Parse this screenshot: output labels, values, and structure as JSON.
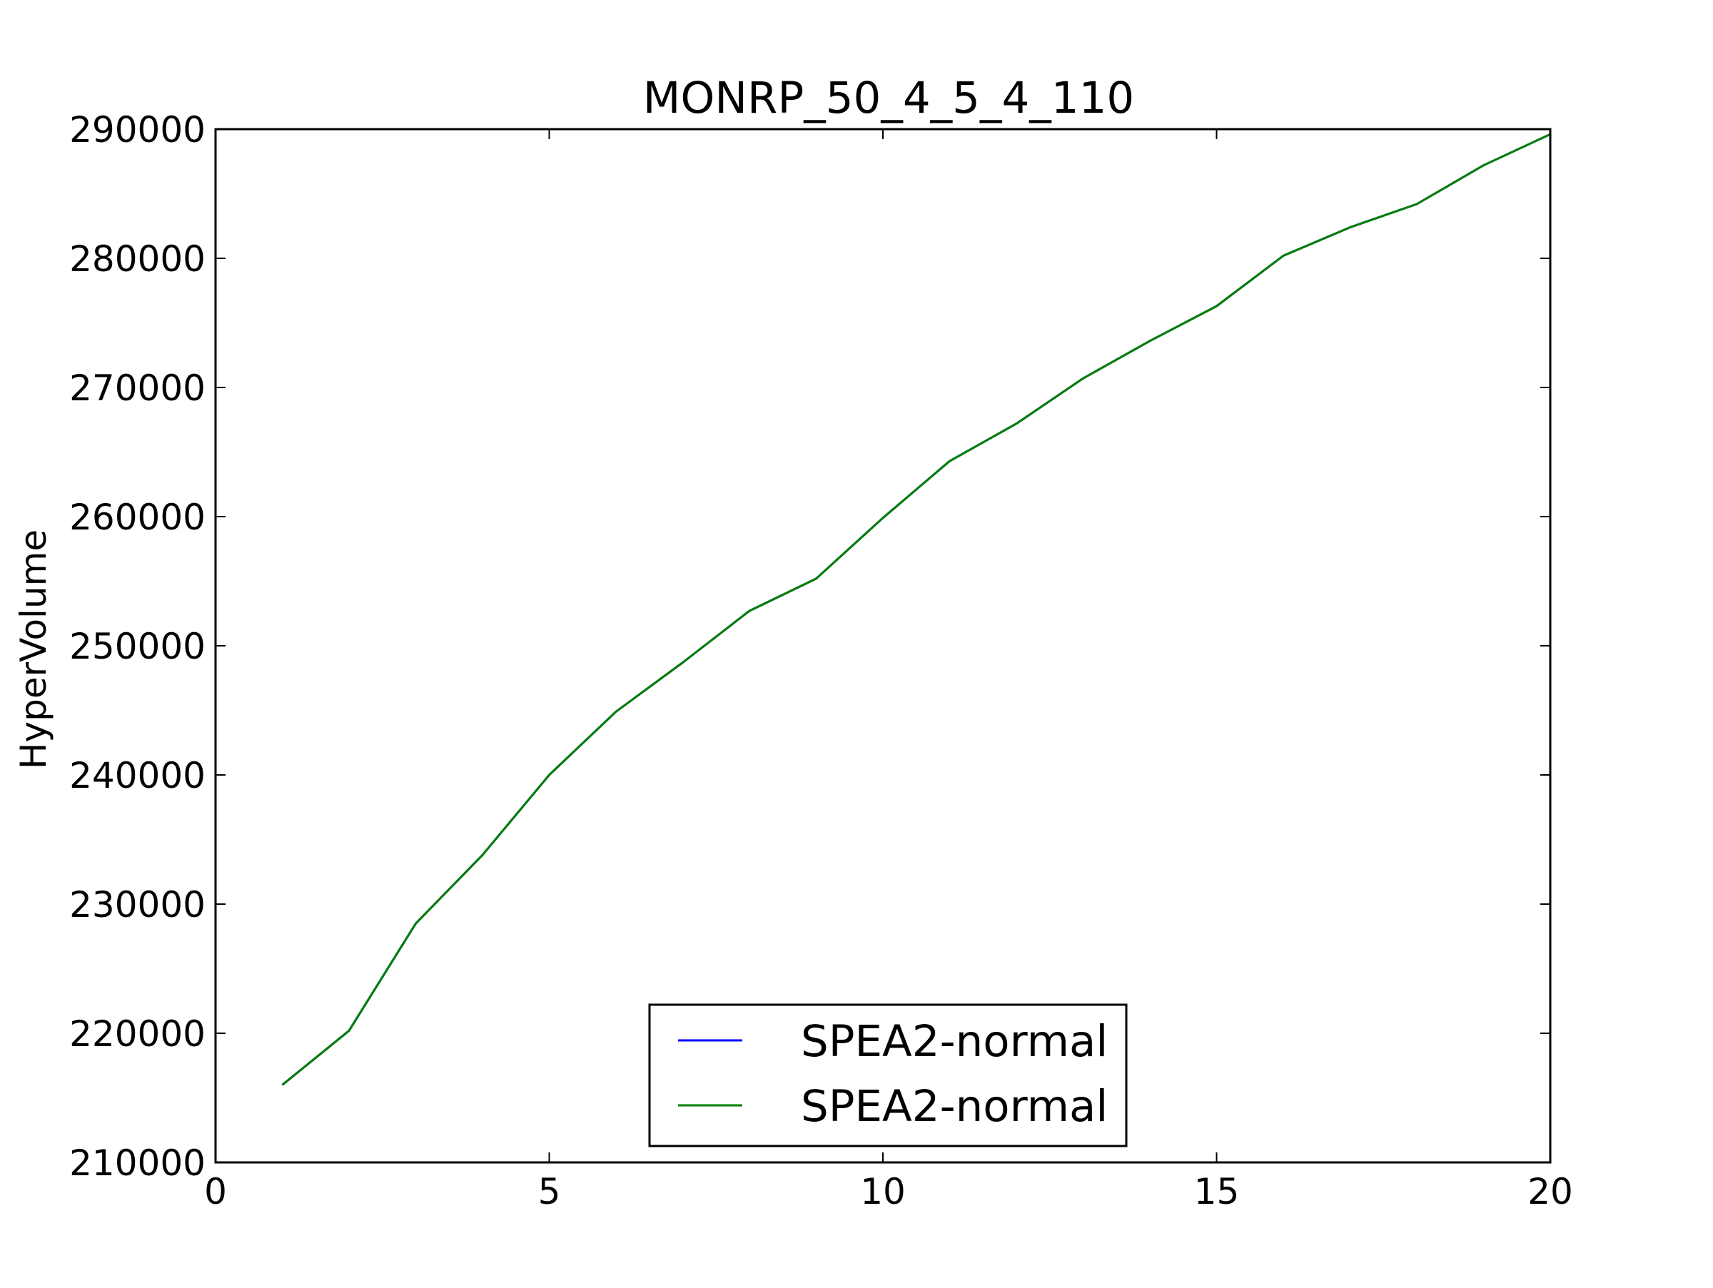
{
  "chart_data": {
    "type": "line",
    "title": "MONRP_50_4_5_4_110",
    "xlabel": "",
    "ylabel": "HyperVolume",
    "xlim": [
      0,
      20
    ],
    "ylim": [
      210000,
      290000
    ],
    "x_ticks": [
      0,
      5,
      10,
      15,
      20
    ],
    "y_ticks": [
      210000,
      220000,
      230000,
      240000,
      250000,
      260000,
      270000,
      280000,
      290000
    ],
    "grid": false,
    "legend_position": "lower-center",
    "series": [
      {
        "name": "SPEA2-normal",
        "color": "#0000ff",
        "x": [
          1,
          2,
          3,
          4,
          5,
          6,
          7,
          8,
          9,
          10,
          11,
          12,
          13,
          14,
          15,
          16,
          17,
          18,
          19,
          20
        ],
        "values": [
          216000,
          220200,
          228500,
          233800,
          240000,
          244900,
          248700,
          252700,
          255200,
          259900,
          264300,
          267200,
          270700,
          273600,
          276300,
          280200,
          282400,
          284200,
          287200,
          289600
        ]
      },
      {
        "name": "SPEA2-normal",
        "color": "#007f00",
        "x": [
          1,
          2,
          3,
          4,
          5,
          6,
          7,
          8,
          9,
          10,
          11,
          12,
          13,
          14,
          15,
          16,
          17,
          18,
          19,
          20
        ],
        "values": [
          216000,
          220200,
          228500,
          233800,
          240000,
          244900,
          248700,
          252700,
          255200,
          259900,
          264300,
          267200,
          270700,
          273600,
          276300,
          280200,
          282400,
          284200,
          287200,
          289600
        ]
      }
    ]
  }
}
